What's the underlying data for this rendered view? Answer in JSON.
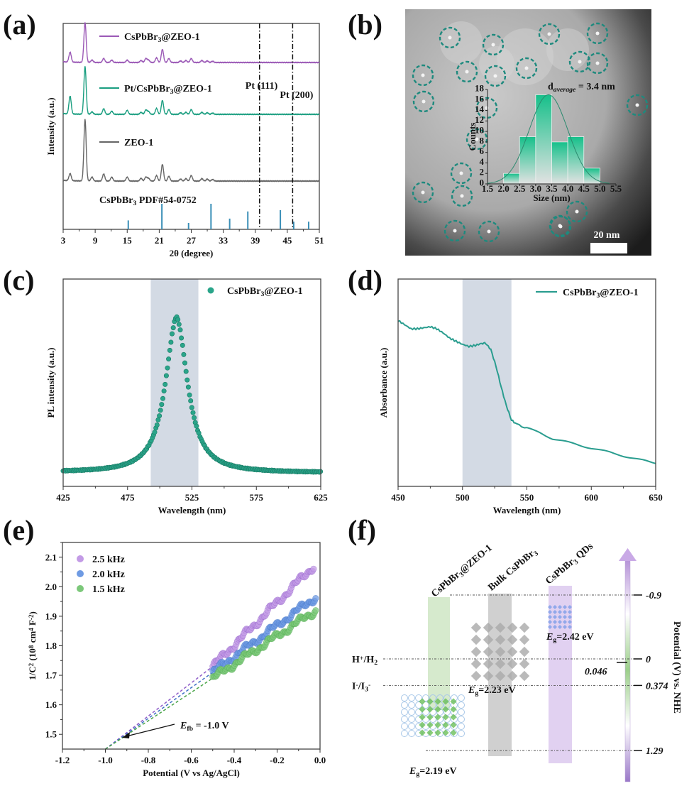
{
  "panels": {
    "a": "(a)",
    "b": "(b)",
    "c": "(c)",
    "d": "(d)",
    "e": "(e)",
    "f": "(f)"
  },
  "chart_data": [
    {
      "id": "a",
      "type": "line",
      "title": "",
      "xlabel": "2θ (degree)",
      "ylabel": "Intensity (a.u.)",
      "xlim": [
        3,
        51
      ],
      "xticks": [
        "3",
        "9",
        "15",
        "21",
        "27",
        "33",
        "39",
        "45",
        "51"
      ],
      "series": [
        {
          "name": "CsPbBr₃@ZEO-1",
          "color": "#9b59b6",
          "offset": 2,
          "peaks": [
            [
              4.3,
              0.25
            ],
            [
              7.1,
              1.0
            ],
            [
              8.4,
              0.06
            ],
            [
              10.6,
              0.1
            ],
            [
              12.1,
              0.06
            ],
            [
              15.0,
              0.06
            ],
            [
              17.6,
              0.05
            ],
            [
              18.5,
              0.1
            ],
            [
              19.0,
              0.06
            ],
            [
              20.5,
              0.12
            ],
            [
              21.6,
              0.33
            ],
            [
              22.8,
              0.1
            ],
            [
              25.0,
              0.04
            ],
            [
              26.0,
              0.05
            ],
            [
              27.0,
              0.1
            ],
            [
              29.0,
              0.05
            ],
            [
              30.0,
              0.04
            ],
            [
              31.0,
              0.03
            ]
          ]
        },
        {
          "name": "Pt/CsPbBr₃@ZEO-1",
          "color": "#1a9e80",
          "offset": 1,
          "peaks": [
            [
              4.3,
              0.45
            ],
            [
              7.1,
              1.2
            ],
            [
              8.4,
              0.06
            ],
            [
              10.6,
              0.14
            ],
            [
              12.1,
              0.08
            ],
            [
              15.0,
              0.1
            ],
            [
              17.6,
              0.05
            ],
            [
              18.5,
              0.11
            ],
            [
              19.0,
              0.07
            ],
            [
              20.5,
              0.15
            ],
            [
              21.6,
              0.35
            ],
            [
              22.8,
              0.12
            ],
            [
              25.0,
              0.04
            ],
            [
              26.0,
              0.05
            ],
            [
              27.0,
              0.12
            ],
            [
              29.0,
              0.05
            ],
            [
              30.0,
              0.04
            ],
            [
              31.0,
              0.03
            ]
          ]
        },
        {
          "name": "ZEO-1",
          "color": "#666666",
          "offset": 0,
          "peaks": [
            [
              4.3,
              0.18
            ],
            [
              7.1,
              1.55
            ],
            [
              8.4,
              0.1
            ],
            [
              10.6,
              0.18
            ],
            [
              12.1,
              0.1
            ],
            [
              15.0,
              0.1
            ],
            [
              17.6,
              0.07
            ],
            [
              18.5,
              0.1
            ],
            [
              19.0,
              0.07
            ],
            [
              20.5,
              0.14
            ],
            [
              21.6,
              0.42
            ],
            [
              22.8,
              0.12
            ],
            [
              25.0,
              0.05
            ],
            [
              26.0,
              0.06
            ],
            [
              27.0,
              0.14
            ],
            [
              29.0,
              0.06
            ],
            [
              30.0,
              0.05
            ],
            [
              31.0,
              0.04
            ]
          ]
        }
      ],
      "reference": {
        "name": "CsPbBr₃ PDF#54-0752",
        "color": "#3a8fb7",
        "lines": [
          [
            15.2,
            0.35
          ],
          [
            21.5,
            1.0
          ],
          [
            26.5,
            0.25
          ],
          [
            30.7,
            1.0
          ],
          [
            34.2,
            0.42
          ],
          [
            37.6,
            0.7
          ],
          [
            43.7,
            0.75
          ],
          [
            46.2,
            0.3
          ],
          [
            49.0,
            0.3
          ]
        ]
      },
      "vlines": [
        {
          "x": 39.8,
          "label": "Pt (111)"
        },
        {
          "x": 46.0,
          "label": "Pt (200)"
        }
      ]
    },
    {
      "id": "b-inset",
      "type": "bar",
      "title": "d_average = 3.4 nm",
      "title_main": "d",
      "title_sub": "average",
      "title_rest": " = 3.4 nm",
      "xlabel": "Size (nm)",
      "ylabel": "Counts",
      "xlim": [
        1.5,
        5.5
      ],
      "ylim": [
        0,
        18
      ],
      "xticks": [
        "1.5",
        "2.0",
        "2.5",
        "3.0",
        "3.5",
        "4.0",
        "4.5",
        "5.0",
        "5.5"
      ],
      "yticks": [
        "0",
        "2",
        "4",
        "6",
        "8",
        "10",
        "12",
        "14",
        "16",
        "18"
      ],
      "bins": [
        [
          2.0,
          2.5
        ],
        [
          2.5,
          3.0
        ],
        [
          3.0,
          3.5
        ],
        [
          3.5,
          4.0
        ],
        [
          4.0,
          4.5
        ],
        [
          4.5,
          5.0
        ]
      ],
      "values": [
        2,
        9,
        17,
        8,
        9,
        3
      ],
      "fit": {
        "mean": 3.4,
        "sigma": 0.6,
        "peak": 17
      },
      "scale_bar": "20 nm"
    },
    {
      "id": "c",
      "type": "scatter",
      "xlabel": "Wavelength (nm)",
      "ylabel": "PL intensity (a.u.)",
      "xlim": [
        425,
        625
      ],
      "xticks": [
        "425",
        "475",
        "525",
        "575",
        "625"
      ],
      "legend": "CsPbBr₃@ZEO-1",
      "color": "#2aa58a",
      "band": [
        493,
        530
      ],
      "peak_center": 513,
      "peak_height": 0.75,
      "baseline": 0.07,
      "fwhm": 22
    },
    {
      "id": "d",
      "type": "line",
      "xlabel": "Wavelength (nm)",
      "ylabel": "Absorbance (a.u.)",
      "xlim": [
        450,
        650
      ],
      "xticks": [
        "450",
        "500",
        "550",
        "600",
        "650"
      ],
      "legend": "CsPbBr₃@ZEO-1",
      "color": "#2a9d8f",
      "band": [
        500,
        538
      ],
      "points": [
        [
          450,
          0.8
        ],
        [
          455,
          0.78
        ],
        [
          460,
          0.76
        ],
        [
          465,
          0.76
        ],
        [
          470,
          0.765
        ],
        [
          475,
          0.77
        ],
        [
          480,
          0.76
        ],
        [
          485,
          0.74
        ],
        [
          490,
          0.715
        ],
        [
          495,
          0.7
        ],
        [
          500,
          0.685
        ],
        [
          505,
          0.675
        ],
        [
          510,
          0.68
        ],
        [
          515,
          0.69
        ],
        [
          518,
          0.69
        ],
        [
          522,
          0.66
        ],
        [
          526,
          0.58
        ],
        [
          530,
          0.48
        ],
        [
          534,
          0.39
        ],
        [
          538,
          0.32
        ],
        [
          542,
          0.3
        ],
        [
          550,
          0.28
        ],
        [
          560,
          0.26
        ],
        [
          570,
          0.23
        ],
        [
          580,
          0.215
        ],
        [
          590,
          0.2
        ],
        [
          600,
          0.185
        ],
        [
          610,
          0.17
        ],
        [
          620,
          0.155
        ],
        [
          630,
          0.14
        ],
        [
          640,
          0.125
        ],
        [
          650,
          0.11
        ]
      ]
    },
    {
      "id": "e",
      "type": "scatter",
      "xlabel": "Potential (V vs Ag/AgCl)",
      "ylabel": "1/C² (10⁸ cm⁴ F⁻²)",
      "xlim": [
        -1.2,
        0.0
      ],
      "ylim": [
        1.45,
        2.15
      ],
      "xticks": [
        "-1.2",
        "-1.0",
        "-0.8",
        "-0.6",
        "-0.4",
        "-0.2",
        "0.0"
      ],
      "yticks": [
        "1.5",
        "1.6",
        "1.7",
        "1.8",
        "1.9",
        "2.0",
        "2.1"
      ],
      "series": [
        {
          "name": "2.5 kHz",
          "color": "#c39be6",
          "line_color": "#8e5cc8",
          "start": [
            -0.5,
            1.73
          ],
          "end": [
            -0.03,
            2.07
          ]
        },
        {
          "name": "2.0 kHz",
          "color": "#6f9be3",
          "line_color": "#3d6fc4",
          "start": [
            -0.5,
            1.71
          ],
          "end": [
            -0.02,
            1.965
          ]
        },
        {
          "name": "1.5 kHz",
          "color": "#7cc87a",
          "line_color": "#4aa548",
          "start": [
            -0.5,
            1.69
          ],
          "end": [
            -0.02,
            1.92
          ]
        }
      ],
      "annotation": {
        "text_italic": "E",
        "text_sub": "fb",
        "text_rest": " = -1.0 V",
        "x": -1.0,
        "y": 1.45
      }
    },
    {
      "id": "f",
      "type": "diagram",
      "axis_label": "Potential (V) vs. NHE",
      "levels": [
        {
          "value": -0.9,
          "label": "-0.9"
        },
        {
          "value": 0,
          "label": "0"
        },
        {
          "value": 0.046,
          "label": "0.046"
        },
        {
          "value": 0.374,
          "label": "0.374"
        },
        {
          "value": 1.29,
          "label": "1.29"
        }
      ],
      "redox": [
        {
          "label": "H⁺/H₂",
          "value": 0
        },
        {
          "label": "I⁻/I₃⁻",
          "value": 0.374
        }
      ],
      "materials": [
        {
          "name": "CsPbBr₃@ZEO-1",
          "eg": "2.19 eV",
          "color": "#cfe6c4",
          "cb": -0.9,
          "vb": 1.29,
          "icon_color": "#6bbf59"
        },
        {
          "name": "Bulk CsPbBr₃",
          "eg": "2.23 eV",
          "color": "#c8c8c8",
          "cb": -0.94,
          "vb": 1.29,
          "icon_color": "#a9a9a9"
        },
        {
          "name": "CsPbBr₃ QDs",
          "eg": "2.42 eV",
          "color": "#dcc9ef",
          "cb": -1.02,
          "vb": 1.4,
          "icon_color": "#7d9ee8"
        }
      ]
    }
  ]
}
